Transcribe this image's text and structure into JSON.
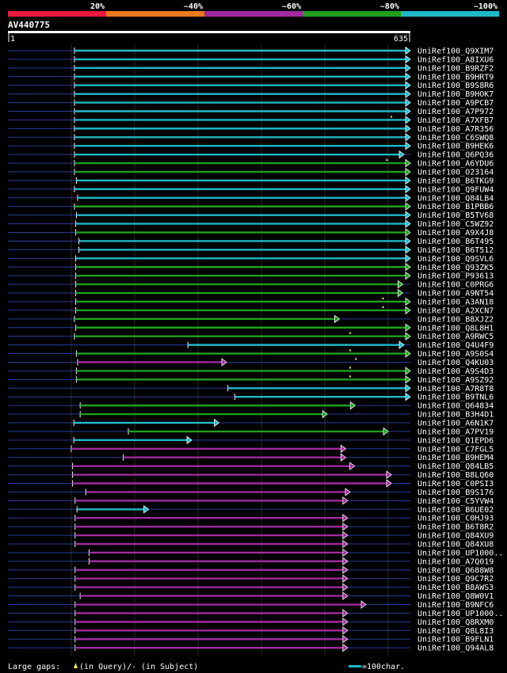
{
  "chart_data": {
    "type": "alignment-overview",
    "query_name": "AV440775",
    "query_length": 635,
    "query_start": 1,
    "query_end_label": "635",
    "identity_legend": [
      {
        "label": "20%",
        "color": "#e8193c"
      },
      {
        "label": "~40%",
        "color": "#e87a1c"
      },
      {
        "label": "~60%",
        "color": "#a02aa0"
      },
      {
        "label": "~80%",
        "color": "#1fa01f"
      },
      {
        "label": "~100%",
        "color": "#1fb8c8"
      }
    ],
    "hits": [
      {
        "name": "UniRef100_Q9XIM7",
        "start": 105,
        "end": 635,
        "color": "cyan",
        "gaps": []
      },
      {
        "name": "UniRef100_A8IXU6",
        "start": 105,
        "end": 635,
        "color": "cyan",
        "gaps": []
      },
      {
        "name": "UniRef100_B9RZF2",
        "start": 105,
        "end": 635,
        "color": "cyan",
        "gaps": []
      },
      {
        "name": "UniRef100_B9HRT9",
        "start": 105,
        "end": 635,
        "color": "cyan",
        "gaps": []
      },
      {
        "name": "UniRef100_B9S8R6",
        "start": 105,
        "end": 635,
        "color": "cyan",
        "gaps": []
      },
      {
        "name": "UniRef100_B9HOK7",
        "start": 105,
        "end": 635,
        "color": "cyan",
        "gaps": []
      },
      {
        "name": "UniRef100_A9PCB7",
        "start": 105,
        "end": 635,
        "color": "cyan",
        "gaps": []
      },
      {
        "name": "UniRef100_A7P972",
        "start": 105,
        "end": 635,
        "color": "cyan",
        "gaps": []
      },
      {
        "name": "UniRef100_A7XFB7",
        "start": 105,
        "end": 635,
        "color": "cyan",
        "gaps": [
          605
        ]
      },
      {
        "name": "UniRef100_A7R356",
        "start": 105,
        "end": 635,
        "color": "cyan",
        "gaps": []
      },
      {
        "name": "UniRef100_C6SWQ8",
        "start": 105,
        "end": 635,
        "color": "cyan",
        "gaps": []
      },
      {
        "name": "UniRef100_B9HEK6",
        "start": 105,
        "end": 635,
        "color": "cyan",
        "gaps": []
      },
      {
        "name": "UniRef100_Q6PQ36",
        "start": 105,
        "end": 625,
        "color": "cyan",
        "gaps": []
      },
      {
        "name": "UniRef100_A6YDU6",
        "start": 105,
        "end": 635,
        "color": "green",
        "gaps": [
          598
        ]
      },
      {
        "name": "UniRef100_O23164",
        "start": 105,
        "end": 635,
        "color": "green",
        "gaps": []
      },
      {
        "name": "UniRef100_B6TKG9",
        "start": 108,
        "end": 635,
        "color": "cyan",
        "gaps": []
      },
      {
        "name": "UniRef100_Q9FUW4",
        "start": 105,
        "end": 635,
        "color": "cyan",
        "gaps": []
      },
      {
        "name": "UniRef100_Q84LB4",
        "start": 110,
        "end": 635,
        "color": "cyan",
        "gaps": []
      },
      {
        "name": "UniRef100_B1PBB6",
        "start": 105,
        "end": 635,
        "color": "green",
        "gaps": []
      },
      {
        "name": "UniRef100_B5TV68",
        "start": 108,
        "end": 635,
        "color": "cyan",
        "gaps": []
      },
      {
        "name": "UniRef100_C5WZ92",
        "start": 107,
        "end": 635,
        "color": "cyan",
        "gaps": []
      },
      {
        "name": "UniRef100_A9X4J8",
        "start": 107,
        "end": 635,
        "color": "green",
        "gaps": []
      },
      {
        "name": "UniRef100_B6T495",
        "start": 112,
        "end": 635,
        "color": "cyan",
        "gaps": []
      },
      {
        "name": "UniRef100_B6T512",
        "start": 112,
        "end": 635,
        "color": "cyan",
        "gaps": []
      },
      {
        "name": "UniRef100_Q9SVL6",
        "start": 107,
        "end": 635,
        "color": "cyan",
        "gaps": []
      },
      {
        "name": "UniRef100_Q93ZK5",
        "start": 107,
        "end": 635,
        "color": "green",
        "gaps": []
      },
      {
        "name": "UniRef100_P93613",
        "start": 107,
        "end": 635,
        "color": "green",
        "gaps": []
      },
      {
        "name": "UniRef100_C0PRG6",
        "start": 107,
        "end": 623,
        "color": "green",
        "gaps": []
      },
      {
        "name": "UniRef100_A9NT54",
        "start": 107,
        "end": 623,
        "color": "green",
        "gaps": []
      },
      {
        "name": "UniRef100_A3AN18",
        "start": 107,
        "end": 635,
        "color": "green",
        "gaps": [
          592
        ]
      },
      {
        "name": "UniRef100_A2XCN7",
        "start": 107,
        "end": 635,
        "color": "green",
        "gaps": [
          592
        ]
      },
      {
        "name": "UniRef100_B8XJZ2",
        "start": 105,
        "end": 523,
        "color": "green",
        "gaps": []
      },
      {
        "name": "UniRef100_Q8L8H1",
        "start": 107,
        "end": 635,
        "color": "green",
        "gaps": []
      },
      {
        "name": "UniRef100_A9RWC5",
        "start": 105,
        "end": 635,
        "color": "green",
        "gaps": [
          540
        ]
      },
      {
        "name": "UniRef100_Q4U4F9",
        "start": 284,
        "end": 625,
        "color": "cyan",
        "gaps": []
      },
      {
        "name": "UniRef100_A9S0S4",
        "start": 108,
        "end": 635,
        "color": "green",
        "gaps": [
          540
        ]
      },
      {
        "name": "UniRef100_Q4KU03",
        "start": 110,
        "end": 345,
        "color": "magenta",
        "gaps": [
          549
        ]
      },
      {
        "name": "UniRef100_A9S4D3",
        "start": 108,
        "end": 635,
        "color": "green",
        "gaps": [
          540
        ]
      },
      {
        "name": "UniRef100_A9SZ92",
        "start": 108,
        "end": 635,
        "color": "green",
        "gaps": [
          540
        ]
      },
      {
        "name": "UniRef100_A7R8T8",
        "start": 347,
        "end": 635,
        "color": "cyan",
        "gaps": []
      },
      {
        "name": "UniRef100_B9TNL6",
        "start": 358,
        "end": 635,
        "color": "cyan",
        "gaps": []
      },
      {
        "name": "UniRef100_Q64834",
        "start": 114,
        "end": 548,
        "color": "green",
        "gaps": []
      },
      {
        "name": "UniRef100_B3H4D1",
        "start": 114,
        "end": 504,
        "color": "green",
        "gaps": []
      },
      {
        "name": "UniRef100_A6N1K7",
        "start": 104,
        "end": 333,
        "color": "cyan",
        "gaps": []
      },
      {
        "name": "UniRef100_A7PV19",
        "start": 190,
        "end": 600,
        "color": "green",
        "gaps": []
      },
      {
        "name": "UniRef100_Q1EPD6",
        "start": 104,
        "end": 290,
        "color": "cyan",
        "gaps": []
      },
      {
        "name": "UniRef100_C7FGL5",
        "start": 100,
        "end": 533,
        "color": "magenta",
        "gaps": []
      },
      {
        "name": "UniRef100_B9HEM4",
        "start": 182,
        "end": 533,
        "color": "magenta",
        "gaps": []
      },
      {
        "name": "UniRef100_Q84LB5",
        "start": 102,
        "end": 547,
        "color": "magenta",
        "gaps": []
      },
      {
        "name": "UniRef100_B8LQ60",
        "start": 102,
        "end": 605,
        "color": "magenta",
        "gaps": []
      },
      {
        "name": "UniRef100_C0PSI3",
        "start": 102,
        "end": 605,
        "color": "magenta",
        "gaps": []
      },
      {
        "name": "UniRef100_B9S176",
        "start": 123,
        "end": 540,
        "color": "magenta",
        "gaps": []
      },
      {
        "name": "UniRef100_C5YVW4",
        "start": 106,
        "end": 536,
        "color": "magenta",
        "gaps": []
      },
      {
        "name": "UniRef100_B6UE02",
        "start": 109,
        "end": 222,
        "color": "cyan",
        "gaps": []
      },
      {
        "name": "UniRef100_C0HJ93",
        "start": 106,
        "end": 536,
        "color": "magenta",
        "gaps": []
      },
      {
        "name": "UniRef100_B6T8R2",
        "start": 106,
        "end": 536,
        "color": "magenta",
        "gaps": []
      },
      {
        "name": "UniRef100_Q84XU9",
        "start": 106,
        "end": 536,
        "color": "magenta",
        "gaps": []
      },
      {
        "name": "UniRef100_Q84XU8",
        "start": 106,
        "end": 536,
        "color": "magenta",
        "gaps": []
      },
      {
        "name": "UniRef100_UP1000..",
        "start": 128,
        "end": 536,
        "color": "magenta",
        "gaps": []
      },
      {
        "name": "UniRef100_A7Q019",
        "start": 128,
        "end": 536,
        "color": "magenta",
        "gaps": []
      },
      {
        "name": "UniRef100_Q688W8",
        "start": 106,
        "end": 536,
        "color": "magenta",
        "gaps": []
      },
      {
        "name": "UniRef100_Q9C7R2",
        "start": 106,
        "end": 536,
        "color": "magenta",
        "gaps": []
      },
      {
        "name": "UniRef100_B8AWS3",
        "start": 106,
        "end": 536,
        "color": "magenta",
        "gaps": []
      },
      {
        "name": "UniRef100_Q8W0V1",
        "start": 114,
        "end": 536,
        "color": "magenta",
        "gaps": []
      },
      {
        "name": "UniRef100_B9NFC6",
        "start": 106,
        "end": 565,
        "color": "magenta",
        "gaps": []
      },
      {
        "name": "UniRef100_UP1000..",
        "start": 106,
        "end": 536,
        "color": "magenta",
        "gaps": []
      },
      {
        "name": "UniRef100_Q8RXM0",
        "start": 106,
        "end": 536,
        "color": "magenta",
        "gaps": []
      },
      {
        "name": "UniRef100_Q8L8I3",
        "start": 106,
        "end": 536,
        "color": "magenta",
        "gaps": []
      },
      {
        "name": "UniRef100_B9FLN1",
        "start": 106,
        "end": 536,
        "color": "magenta",
        "gaps": []
      },
      {
        "name": "UniRef100_Q94AL8",
        "start": 106,
        "end": 536,
        "color": "magenta",
        "gaps": []
      }
    ],
    "footer": {
      "gaps_label": "Large gaps:",
      "gaps_query": "(in Query)/",
      "gaps_subject_symbol": "-",
      "gaps_subject": " (in Subject)",
      "scale_label": "=100char."
    },
    "colors": {
      "cyan": "#1fb8c8",
      "green": "#1fa01f",
      "magenta": "#a02aa0",
      "gap_marker": "#f0e070",
      "grid": "#2a2a2a",
      "dim_line": "#2a3d9a"
    }
  }
}
